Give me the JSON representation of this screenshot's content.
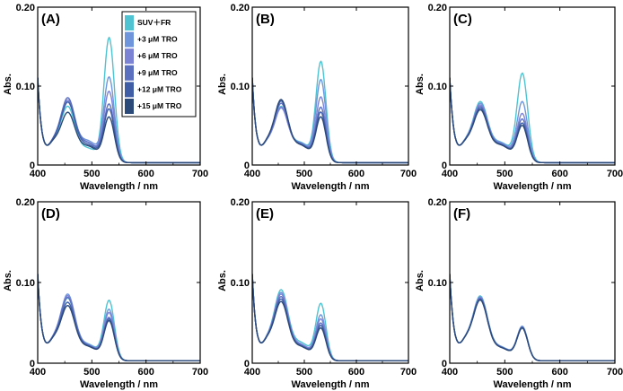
{
  "colors": {
    "SUV+FR": "#4fc3d1",
    "+3 μM TRO": "#6f96dc",
    "+6 μM TRO": "#7c82d4",
    "+9 μM TRO": "#5c70c0",
    "+12 μM TRO": "#3f5ea6",
    "+15 μM TRO": "#2b4a7a"
  },
  "chart_data": [
    {
      "type": "line",
      "panel_label": "(A)",
      "xlabel": "Wavelength / nm",
      "ylabel": "Abs.",
      "xlim": [
        400,
        700
      ],
      "ylim": [
        0,
        0.2
      ],
      "xticks": [
        "400",
        "500",
        "600",
        "700"
      ],
      "yticks": [
        "0",
        "0.10",
        "0.20"
      ],
      "legend": {
        "placement": "top-right",
        "entries": [
          "SUV＋FR",
          "+3 μM TRO",
          "+6 μM TRO",
          "+9 μM TRO",
          "+12 μM TRO",
          "+15 μM TRO"
        ]
      },
      "series": [
        {
          "name": "SUV+FR",
          "peak1": 0.069,
          "peak2": 0.157,
          "valley": 0.032
        },
        {
          "name": "+3 μM TRO",
          "peak1": 0.073,
          "peak2": 0.106,
          "valley": 0.049
        },
        {
          "name": "+6 μM TRO",
          "peak1": 0.076,
          "peak2": 0.088,
          "valley": 0.045
        },
        {
          "name": "+9 μM TRO",
          "peak1": 0.079,
          "peak2": 0.072,
          "valley": 0.044
        },
        {
          "name": "+12 μM TRO",
          "peak1": 0.074,
          "peak2": 0.066,
          "valley": 0.04
        },
        {
          "name": "+15 μM TRO",
          "peak1": 0.061,
          "peak2": 0.056,
          "valley": 0.037
        }
      ]
    },
    {
      "type": "line",
      "panel_label": "(B)",
      "xlabel": "Wavelength / nm",
      "ylabel": "Abs.",
      "xlim": [
        400,
        700
      ],
      "ylim": [
        0,
        0.2
      ],
      "xticks": [
        "400",
        "500",
        "600",
        "700"
      ],
      "yticks": [
        "0",
        "0.10",
        "0.20"
      ],
      "series": [
        {
          "name": "SUV+FR",
          "peak1": 0.068,
          "peak2": 0.126,
          "valley": 0.045
        },
        {
          "name": "+3 μM TRO",
          "peak1": 0.066,
          "peak2": 0.103,
          "valley": 0.044
        },
        {
          "name": "+6 μM TRO",
          "peak1": 0.067,
          "peak2": 0.081,
          "valley": 0.042
        },
        {
          "name": "+9 μM TRO",
          "peak1": 0.072,
          "peak2": 0.068,
          "valley": 0.042
        },
        {
          "name": "+12 μM TRO",
          "peak1": 0.075,
          "peak2": 0.062,
          "valley": 0.04
        },
        {
          "name": "+15 μM TRO",
          "peak1": 0.077,
          "peak2": 0.056,
          "valley": 0.039
        }
      ]
    },
    {
      "type": "line",
      "panel_label": "(C)",
      "xlabel": "Wavelength / nm",
      "ylabel": "Abs.",
      "xlim": [
        400,
        700
      ],
      "ylim": [
        0,
        0.2
      ],
      "xticks": [
        "400",
        "500",
        "600",
        "700"
      ],
      "yticks": [
        "0",
        "0.10",
        "0.20"
      ],
      "series": [
        {
          "name": "SUV+FR",
          "peak1": 0.074,
          "peak2": 0.111,
          "valley": 0.045
        },
        {
          "name": "+3 μM TRO",
          "peak1": 0.072,
          "peak2": 0.075,
          "valley": 0.044
        },
        {
          "name": "+6 μM TRO",
          "peak1": 0.07,
          "peak2": 0.06,
          "valley": 0.042
        },
        {
          "name": "+9 μM TRO",
          "peak1": 0.068,
          "peak2": 0.053,
          "valley": 0.041
        },
        {
          "name": "+12 μM TRO",
          "peak1": 0.066,
          "peak2": 0.048,
          "valley": 0.04
        },
        {
          "name": "+15 μM TRO",
          "peak1": 0.064,
          "peak2": 0.045,
          "valley": 0.039
        }
      ]
    },
    {
      "type": "line",
      "panel_label": "(D)",
      "xlabel": "Wavelength / nm",
      "ylabel": "Abs.",
      "xlim": [
        400,
        700
      ],
      "ylim": [
        0,
        0.2
      ],
      "xticks": [
        "400",
        "500",
        "600",
        "700"
      ],
      "yticks": [
        "0",
        "0.10",
        "0.20"
      ],
      "series": [
        {
          "name": "SUV+FR",
          "peak1": 0.075,
          "peak2": 0.073,
          "valley": 0.036
        },
        {
          "name": "+3 μM TRO",
          "peak1": 0.08,
          "peak2": 0.062,
          "valley": 0.035
        },
        {
          "name": "+6 μM TRO",
          "peak1": 0.078,
          "peak2": 0.058,
          "valley": 0.034
        },
        {
          "name": "+9 μM TRO",
          "peak1": 0.076,
          "peak2": 0.052,
          "valley": 0.033
        },
        {
          "name": "+12 μM TRO",
          "peak1": 0.07,
          "peak2": 0.05,
          "valley": 0.032
        },
        {
          "name": "+15 μM TRO",
          "peak1": 0.066,
          "peak2": 0.048,
          "valley": 0.031
        }
      ]
    },
    {
      "type": "line",
      "panel_label": "(E)",
      "xlabel": "Wavelength / nm",
      "ylabel": "Abs.",
      "xlim": [
        400,
        700
      ],
      "ylim": [
        0,
        0.2
      ],
      "xticks": [
        "400",
        "500",
        "600",
        "700"
      ],
      "yticks": [
        "0",
        "0.10",
        "0.20"
      ],
      "series": [
        {
          "name": "SUV+FR",
          "peak1": 0.085,
          "peak2": 0.069,
          "valley": 0.04
        },
        {
          "name": "+3 μM TRO",
          "peak1": 0.082,
          "peak2": 0.055,
          "valley": 0.036
        },
        {
          "name": "+6 μM TRO",
          "peak1": 0.08,
          "peak2": 0.05,
          "valley": 0.035
        },
        {
          "name": "+9 μM TRO",
          "peak1": 0.077,
          "peak2": 0.045,
          "valley": 0.033
        },
        {
          "name": "+12 μM TRO",
          "peak1": 0.074,
          "peak2": 0.042,
          "valley": 0.032
        },
        {
          "name": "+15 μM TRO",
          "peak1": 0.071,
          "peak2": 0.039,
          "valley": 0.031
        }
      ]
    },
    {
      "type": "line",
      "panel_label": "(F)",
      "xlabel": "Wavelength / nm",
      "ylabel": "Abs.",
      "xlim": [
        400,
        700
      ],
      "ylim": [
        0,
        0.2
      ],
      "xticks": [
        "400",
        "500",
        "600",
        "700"
      ],
      "yticks": [
        "0",
        "0.10",
        "0.20"
      ],
      "series": [
        {
          "name": "SUV+FR",
          "peak1": 0.078,
          "peak2": 0.041,
          "valley": 0.03
        },
        {
          "name": "+3 μM TRO",
          "peak1": 0.077,
          "peak2": 0.041,
          "valley": 0.03
        },
        {
          "name": "+6 μM TRO",
          "peak1": 0.076,
          "peak2": 0.04,
          "valley": 0.029
        },
        {
          "name": "+9 μM TRO",
          "peak1": 0.075,
          "peak2": 0.04,
          "valley": 0.029
        },
        {
          "name": "+12 μM TRO",
          "peak1": 0.074,
          "peak2": 0.039,
          "valley": 0.028
        },
        {
          "name": "+15 μM TRO",
          "peak1": 0.073,
          "peak2": 0.039,
          "valley": 0.028
        }
      ]
    }
  ]
}
